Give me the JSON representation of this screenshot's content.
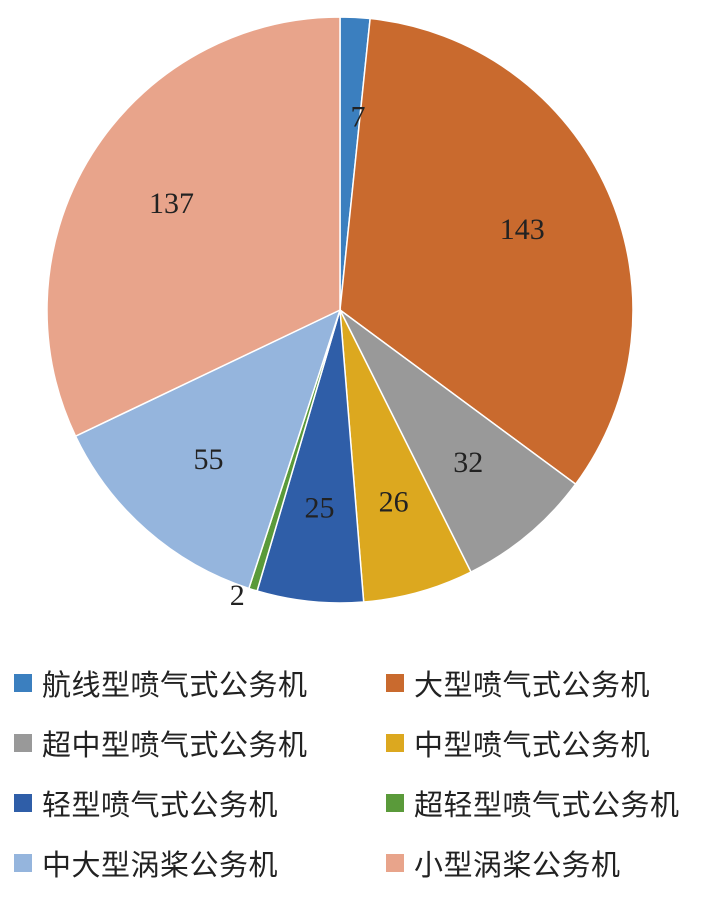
{
  "chart_data": {
    "type": "pie",
    "start_angle_deg": 0,
    "direction": "clockwise",
    "legend_position": "bottom",
    "slices": [
      {
        "name": "航线型喷气式公务机",
        "value": 7,
        "label": "7",
        "color": "#3b7fbf"
      },
      {
        "name": "大型喷气式公务机",
        "value": 143,
        "label": "143",
        "color": "#c96a2e"
      },
      {
        "name": "超中型喷气式公务机",
        "value": 32,
        "label": "32",
        "color": "#999999"
      },
      {
        "name": "中型喷气式公务机",
        "value": 26,
        "label": "26",
        "color": "#dca81f"
      },
      {
        "name": "轻型喷气式公务机",
        "value": 25,
        "label": "25",
        "color": "#2f5ea8"
      },
      {
        "name": "超轻型喷气式公务机",
        "value": 2,
        "label": "2",
        "color": "#5a9a3a"
      },
      {
        "name": "中大型涡桨公务机",
        "value": 55,
        "label": "55",
        "color": "#95b5dd"
      },
      {
        "name": "小型涡桨公务机",
        "value": 137,
        "label": "137",
        "color": "#e8a48b"
      }
    ]
  }
}
